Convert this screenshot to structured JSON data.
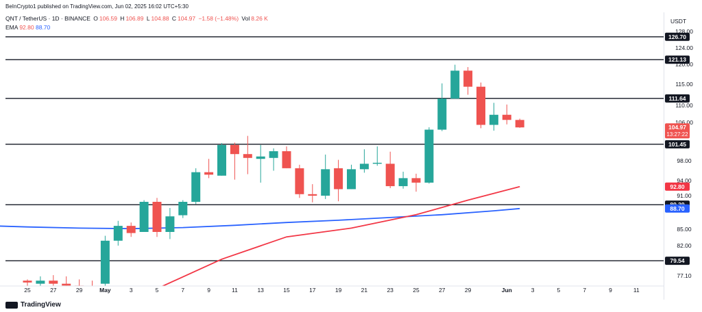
{
  "publisher": "BeInCrypto1 published on TradingView.com, Jun 02, 2025 16:02 UTC+5:30",
  "header": {
    "symbol": "QNT / TetherUS · 1D · BINANCE",
    "o_label": "O",
    "o_value": "106.59",
    "h_label": "H",
    "h_value": "106.89",
    "l_label": "L",
    "l_value": "104.88",
    "c_label": "C",
    "c_value": "104.97",
    "change": "−1.58 (−1.48%)",
    "vol_label": "Vol",
    "vol_value": "8.26 K",
    "ema_label": "EMA",
    "ema1": "92.80",
    "ema2": "88.70"
  },
  "currency": "USDT",
  "footer": {
    "brand": "TradingView"
  },
  "colors": {
    "up": "#26a69a",
    "down": "#ef5350",
    "ema_fast": "#f23645",
    "ema_slow": "#2962ff",
    "level": "#131722"
  },
  "chart_data": {
    "type": "candlestick",
    "y_ticks": [
      "128.00",
      "124.00",
      "120.00",
      "115.00",
      "110.00",
      "106.00",
      "98.00",
      "94.00",
      "91.00",
      "85.00",
      "82.00",
      "77.10"
    ],
    "y_tick_values": [
      128,
      124,
      120,
      115,
      110,
      106,
      98,
      94,
      91,
      85,
      82,
      77.1
    ],
    "x_ticks": [
      "25",
      "27",
      "29",
      "May",
      "3",
      "5",
      "7",
      "9",
      "11",
      "13",
      "15",
      "17",
      "19",
      "21",
      "23",
      "25",
      "27",
      "29",
      "Jun",
      "3",
      "5",
      "7",
      "9",
      "11"
    ],
    "x_tick_day_index": [
      0,
      2,
      4,
      6,
      8,
      10,
      12,
      14,
      16,
      18,
      20,
      22,
      24,
      26,
      28,
      30,
      32,
      34,
      37,
      39,
      41,
      43,
      45,
      47
    ],
    "horizontal_levels": [
      126.7,
      121.13,
      111.64,
      101.45,
      89.39,
      79.54
    ],
    "price_labels": [
      {
        "text": "126.70",
        "value": 126.7,
        "color": "#131722"
      },
      {
        "text": "121.13",
        "value": 121.13,
        "color": "#131722"
      },
      {
        "text": "111.64",
        "value": 111.64,
        "color": "#131722"
      },
      {
        "text": "104.97",
        "value": 104.97,
        "color": "#ef5350",
        "sub": "13:27:22"
      },
      {
        "text": "101.45",
        "value": 101.45,
        "color": "#131722"
      },
      {
        "text": "92.80",
        "value": 92.8,
        "color": "#f23645"
      },
      {
        "text": "89.39",
        "value": 89.39,
        "color": "#131722"
      },
      {
        "text": "88.70",
        "value": 88.7,
        "color": "#2962ff"
      },
      {
        "text": "79.54",
        "value": 79.54,
        "color": "#131722"
      }
    ],
    "candles": [
      {
        "d": 0,
        "o": 76.3,
        "h": 76.5,
        "l": 75.0,
        "c": 76.0
      },
      {
        "d": 1,
        "o": 75.8,
        "h": 77.0,
        "l": 75.0,
        "c": 76.3
      },
      {
        "d": 2,
        "o": 76.3,
        "h": 77.2,
        "l": 75.0,
        "c": 75.8
      },
      {
        "d": 3,
        "o": 75.8,
        "h": 77.0,
        "l": 75.0,
        "c": 75.5
      },
      {
        "d": 4,
        "o": 75.5,
        "h": 76.5,
        "l": 75.0,
        "c": 75.3
      },
      {
        "d": 5,
        "o": 75.3,
        "h": 76.3,
        "l": 75.0,
        "c": 75.0
      },
      {
        "d": 6,
        "o": 75.8,
        "h": 83.8,
        "l": 75.0,
        "c": 82.9
      },
      {
        "d": 7,
        "o": 82.9,
        "h": 86.5,
        "l": 82.0,
        "c": 85.6
      },
      {
        "d": 8,
        "o": 85.6,
        "h": 86.2,
        "l": 83.6,
        "c": 84.3
      },
      {
        "d": 9,
        "o": 84.5,
        "h": 90.2,
        "l": 84.5,
        "c": 89.9
      },
      {
        "d": 10,
        "o": 89.9,
        "h": 90.6,
        "l": 83.6,
        "c": 84.5
      },
      {
        "d": 11,
        "o": 84.5,
        "h": 88.8,
        "l": 83.2,
        "c": 87.3
      },
      {
        "d": 12,
        "o": 87.5,
        "h": 90.2,
        "l": 87.0,
        "c": 89.9
      },
      {
        "d": 13,
        "o": 89.9,
        "h": 96.5,
        "l": 89.5,
        "c": 95.7
      },
      {
        "d": 14,
        "o": 95.7,
        "h": 98.4,
        "l": 94.5,
        "c": 95.2
      },
      {
        "d": 15,
        "o": 95.0,
        "h": 101.7,
        "l": 95.0,
        "c": 101.3
      },
      {
        "d": 16,
        "o": 101.3,
        "h": 101.8,
        "l": 94.2,
        "c": 99.4
      },
      {
        "d": 17,
        "o": 99.4,
        "h": 103.2,
        "l": 95.3,
        "c": 98.6
      },
      {
        "d": 18,
        "o": 98.4,
        "h": 101.3,
        "l": 93.6,
        "c": 98.9
      },
      {
        "d": 19,
        "o": 98.6,
        "h": 100.6,
        "l": 96.0,
        "c": 100.0
      },
      {
        "d": 20,
        "o": 100.0,
        "h": 101.0,
        "l": 96.5,
        "c": 96.5
      },
      {
        "d": 21,
        "o": 96.5,
        "h": 97.2,
        "l": 90.6,
        "c": 91.3
      },
      {
        "d": 22,
        "o": 91.3,
        "h": 93.3,
        "l": 89.8,
        "c": 91.0
      },
      {
        "d": 23,
        "o": 91.0,
        "h": 99.3,
        "l": 90.4,
        "c": 96.3
      },
      {
        "d": 24,
        "o": 96.5,
        "h": 98.2,
        "l": 90.0,
        "c": 92.3
      },
      {
        "d": 25,
        "o": 92.3,
        "h": 97.2,
        "l": 92.3,
        "c": 96.3
      },
      {
        "d": 26,
        "o": 96.3,
        "h": 100.4,
        "l": 95.6,
        "c": 97.4
      },
      {
        "d": 27,
        "o": 97.4,
        "h": 101.0,
        "l": 97.0,
        "c": 97.6
      },
      {
        "d": 28,
        "o": 97.4,
        "h": 99.9,
        "l": 92.5,
        "c": 92.9
      },
      {
        "d": 29,
        "o": 92.9,
        "h": 95.8,
        "l": 92.4,
        "c": 94.5
      },
      {
        "d": 30,
        "o": 94.5,
        "h": 95.4,
        "l": 91.8,
        "c": 93.6
      },
      {
        "d": 31,
        "o": 93.6,
        "h": 105.0,
        "l": 93.4,
        "c": 104.5
      },
      {
        "d": 32,
        "o": 104.5,
        "h": 115.2,
        "l": 104.2,
        "c": 111.6
      },
      {
        "d": 33,
        "o": 111.6,
        "h": 119.9,
        "l": 111.6,
        "c": 118.4
      },
      {
        "d": 34,
        "o": 118.4,
        "h": 119.3,
        "l": 112.5,
        "c": 114.4
      },
      {
        "d": 35,
        "o": 114.4,
        "h": 115.4,
        "l": 104.8,
        "c": 105.5
      },
      {
        "d": 36,
        "o": 105.5,
        "h": 110.6,
        "l": 104.3,
        "c": 107.8
      },
      {
        "d": 37,
        "o": 107.8,
        "h": 110.2,
        "l": 105.6,
        "c": 106.6
      },
      {
        "d": 38,
        "o": 106.59,
        "h": 106.89,
        "l": 104.88,
        "c": 104.97
      }
    ],
    "ema_fast": [
      {
        "d": 5,
        "v": 71.0
      },
      {
        "d": 10,
        "v": 75.0
      },
      {
        "d": 15,
        "v": 79.8
      },
      {
        "d": 20,
        "v": 83.6
      },
      {
        "d": 25,
        "v": 85.2
      },
      {
        "d": 30,
        "v": 87.6
      },
      {
        "d": 34,
        "v": 90.2
      },
      {
        "d": 38,
        "v": 92.8
      }
    ],
    "ema_slow": [
      {
        "d": -4,
        "v": 85.7
      },
      {
        "d": 0,
        "v": 85.4
      },
      {
        "d": 4,
        "v": 85.2
      },
      {
        "d": 8,
        "v": 85.1
      },
      {
        "d": 12,
        "v": 85.3
      },
      {
        "d": 16,
        "v": 85.7
      },
      {
        "d": 20,
        "v": 86.2
      },
      {
        "d": 24,
        "v": 86.6
      },
      {
        "d": 28,
        "v": 87.1
      },
      {
        "d": 32,
        "v": 87.6
      },
      {
        "d": 36,
        "v": 88.3
      },
      {
        "d": 38,
        "v": 88.7
      }
    ]
  }
}
